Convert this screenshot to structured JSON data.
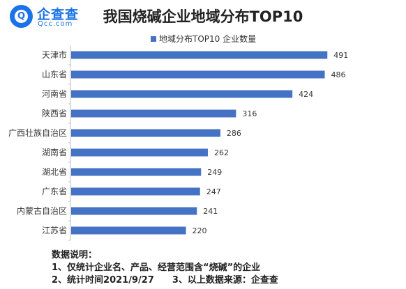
{
  "brand": {
    "logo_glyph": "Q",
    "name": "企查查",
    "url": "Qcc.com",
    "color": "#1a73e8"
  },
  "chart_data": {
    "type": "bar",
    "orientation": "horizontal",
    "title": "我国烧碱企业地域分布TOP10",
    "categories": [
      "天津市",
      "山东省",
      "河南省",
      "陕西省",
      "广西壮族自治区",
      "湖南省",
      "湖北省",
      "广东省",
      "内蒙古自治区",
      "江苏省"
    ],
    "series": [
      {
        "name": "地域分布TOP10 企业数量",
        "values": [
          491,
          486,
          424,
          316,
          286,
          262,
          249,
          247,
          241,
          220
        ],
        "color": "#4472c4"
      }
    ],
    "xlim": [
      0,
      520
    ],
    "grid": false,
    "legend_position": "top"
  },
  "notes": {
    "heading": "数据说明：",
    "line1": "1、仅统计企业名、产品、经营范围含“烧碱”的企业",
    "line2": "2、统计时间2021/9/27　　3、以上数据来源：企查查"
  }
}
